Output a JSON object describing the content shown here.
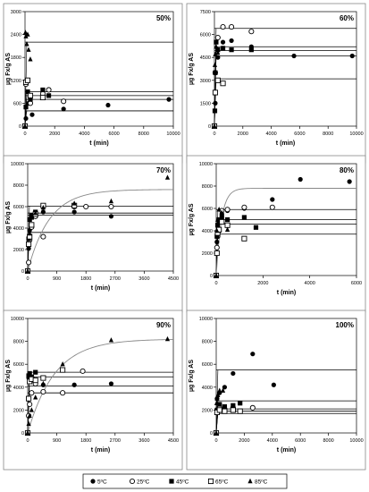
{
  "legend": {
    "entries": [
      {
        "label": "5ºC",
        "marker": "filled-circle"
      },
      {
        "label": "25ºC",
        "marker": "open-circle"
      },
      {
        "label": "45ºC",
        "marker": "filled-square"
      },
      {
        "label": "65ºC",
        "marker": "open-square"
      },
      {
        "label": "85ºC",
        "marker": "filled-triangle"
      }
    ]
  },
  "colors": {
    "marker": "#000000",
    "fit_line": "#000000",
    "asymptote_line": "#000000",
    "exponential_line": "#888888",
    "frame": "#888888"
  },
  "chart_data": [
    {
      "type": "scatter",
      "title": "50%",
      "xlabel": "t (min)",
      "ylabel": "µg Fx/g AS",
      "xlim": [
        0,
        10000
      ],
      "ylim": [
        0,
        3000
      ],
      "xticks": [
        "0",
        "2000",
        "4000",
        "6000",
        "8000",
        "10000"
      ],
      "yticks": [
        "0",
        "600",
        "1200",
        "1800",
        "2400",
        "3000"
      ],
      "hlines": [
        2200,
        900,
        800,
        700,
        400
      ],
      "series": [
        {
          "name": "5ºC",
          "marker": "filled-circle",
          "x": [
            0,
            60,
            240,
            480,
            1200,
            2600,
            5600,
            9700
          ],
          "y": [
            0,
            200,
            600,
            300,
            800,
            450,
            550,
            700
          ]
        },
        {
          "name": "25ºC",
          "marker": "open-circle",
          "x": [
            0,
            60,
            180,
            360,
            1200,
            1600,
            2600
          ],
          "y": [
            0,
            1100,
            1200,
            600,
            850,
            950,
            650
          ]
        },
        {
          "name": "45ºC",
          "marker": "filled-square",
          "x": [
            0,
            60,
            180,
            360,
            1200,
            1600
          ],
          "y": [
            0,
            500,
            900,
            700,
            950,
            800
          ]
        },
        {
          "name": "65ºC",
          "marker": "open-square",
          "x": [
            0,
            60,
            180,
            360,
            1200
          ],
          "y": [
            0,
            1150,
            1200,
            800,
            750
          ]
        },
        {
          "name": "85ºC",
          "marker": "filled-triangle",
          "x": [
            0,
            30,
            60,
            120,
            180,
            240,
            360
          ],
          "y": [
            0,
            2450,
            2350,
            2150,
            2400,
            2000,
            1750
          ]
        }
      ]
    },
    {
      "type": "scatter",
      "title": "60%",
      "xlabel": "t (min)",
      "ylabel": "µg Fx/g AS",
      "xlim": [
        0,
        10000
      ],
      "ylim": [
        0,
        7500
      ],
      "xticks": [
        "0",
        "2000",
        "4000",
        "6000",
        "8000",
        "10000"
      ],
      "yticks": [
        "0",
        "1500",
        "3000",
        "4500",
        "6000",
        "7500"
      ],
      "hlines": [
        6400,
        5200,
        4950,
        4600,
        3100
      ],
      "series": [
        {
          "name": "5ºC",
          "marker": "filled-circle",
          "x": [
            0,
            60,
            240,
            600,
            1200,
            2600,
            5600,
            9700
          ],
          "y": [
            0,
            1500,
            4500,
            5500,
            5600,
            5200,
            4600,
            4600
          ]
        },
        {
          "name": "25ºC",
          "marker": "open-circle",
          "x": [
            0,
            60,
            240,
            600,
            1200,
            2600
          ],
          "y": [
            0,
            3500,
            5800,
            6500,
            6500,
            6200
          ]
        },
        {
          "name": "45ºC",
          "marker": "filled-square",
          "x": [
            0,
            30,
            60,
            120,
            240,
            600,
            1200,
            2600
          ],
          "y": [
            0,
            1000,
            3500,
            5500,
            5000,
            5100,
            5000,
            5000
          ]
        },
        {
          "name": "65ºC",
          "marker": "open-square",
          "x": [
            0,
            60,
            240,
            600
          ],
          "y": [
            0,
            2200,
            3000,
            2800
          ]
        },
        {
          "name": "85ºC",
          "marker": "filled-triangle",
          "x": [
            0,
            30,
            60,
            120,
            240,
            600
          ],
          "y": [
            0,
            4000,
            4700,
            5200,
            4800,
            5100
          ]
        }
      ]
    },
    {
      "type": "scatter",
      "title": "70%",
      "xlabel": "t (min)",
      "ylabel": "µg Fx/g AS",
      "xlim": [
        0,
        4500
      ],
      "ylim": [
        0,
        10000
      ],
      "xticks": [
        "0",
        "900",
        "1800",
        "2700",
        "3600",
        "4500"
      ],
      "yticks": [
        "0",
        "2000",
        "4000",
        "6000",
        "8000",
        "10000"
      ],
      "hlines": [
        6050,
        5400,
        5200,
        3600
      ],
      "exp_curve": {
        "a": 7600,
        "k": 0.0015
      },
      "series": [
        {
          "name": "5ºC",
          "marker": "filled-circle",
          "x": [
            0,
            30,
            60,
            120,
            240,
            480,
            1440,
            2580
          ],
          "y": [
            0,
            2100,
            3800,
            5200,
            5400,
            5500,
            5500,
            5100
          ]
        },
        {
          "name": "25ºC",
          "marker": "open-circle",
          "x": [
            0,
            30,
            60,
            120,
            240,
            480,
            1440,
            1800,
            2580
          ],
          "y": [
            0,
            800,
            2900,
            4100,
            5100,
            3200,
            6000,
            6000,
            6000
          ]
        },
        {
          "name": "45ºC",
          "marker": "filled-square",
          "x": [
            0,
            30,
            60,
            120,
            240
          ],
          "y": [
            0,
            3000,
            4800,
            5000,
            5500
          ]
        },
        {
          "name": "65ºC",
          "marker": "open-square",
          "x": [
            0,
            30,
            60,
            120,
            240,
            480,
            1440
          ],
          "y": [
            0,
            2500,
            3200,
            4300,
            5300,
            6100,
            6100
          ]
        },
        {
          "name": "85ºC",
          "marker": "filled-triangle",
          "x": [
            0,
            60,
            240,
            480,
            1440,
            2580,
            4320
          ],
          "y": [
            0,
            3500,
            5400,
            5900,
            6300,
            6500,
            8700
          ]
        }
      ]
    },
    {
      "type": "scatter",
      "title": "80%",
      "xlabel": "t (min)",
      "ylabel": "µg Fx/g AS",
      "xlim": [
        0,
        6000
      ],
      "ylim": [
        0,
        10000
      ],
      "xticks": [
        "0",
        "2000",
        "4000",
        "6000"
      ],
      "yticks": [
        "0",
        "2000",
        "4000",
        "6000",
        "8000",
        "10000"
      ],
      "hlines": [
        5900,
        5000,
        4600,
        3700
      ],
      "exp_curve": {
        "a": 7800,
        "k": 0.0045
      },
      "series": [
        {
          "name": "5ºC",
          "marker": "filled-circle",
          "x": [
            0,
            30,
            60,
            120,
            240,
            480,
            1200,
            2400,
            3600,
            5700
          ],
          "y": [
            0,
            3000,
            4000,
            4800,
            5500,
            5800,
            6000,
            6800,
            8600,
            8400
          ]
        },
        {
          "name": "25ºC",
          "marker": "open-circle",
          "x": [
            0,
            30,
            60,
            120,
            240,
            480,
            1200,
            2400
          ],
          "y": [
            0,
            2500,
            3500,
            4000,
            5800,
            5900,
            6100,
            6100
          ]
        },
        {
          "name": "45ºC",
          "marker": "filled-square",
          "x": [
            0,
            30,
            60,
            120,
            240,
            480,
            1200,
            1700
          ],
          "y": [
            0,
            3500,
            4500,
            5000,
            5200,
            5000,
            5200,
            4300
          ]
        },
        {
          "name": "65ºC",
          "marker": "open-square",
          "x": [
            0,
            30,
            60,
            120,
            240,
            480,
            1200
          ],
          "y": [
            0,
            2000,
            3800,
            4100,
            4800,
            4500,
            3300
          ]
        },
        {
          "name": "85ºC",
          "marker": "filled-triangle",
          "x": [
            0,
            30,
            60,
            120,
            240,
            480
          ],
          "y": [
            0,
            4000,
            5000,
            5900,
            5600,
            4100
          ]
        }
      ]
    },
    {
      "type": "scatter",
      "title": "90%",
      "xlabel": "t (min)",
      "ylabel": "µg Fx/g AS",
      "xlim": [
        0,
        4500
      ],
      "ylim": [
        0,
        10000
      ],
      "xticks": [
        "0",
        "900",
        "1800",
        "2700",
        "3600",
        "4500"
      ],
      "yticks": [
        "0",
        "2000",
        "4000",
        "6000",
        "8000",
        "10000"
      ],
      "hlines": [
        5300,
        4900,
        4100,
        3500
      ],
      "exp_curve": {
        "a": 8200,
        "k": 0.0012
      },
      "series": [
        {
          "name": "5ºC",
          "marker": "filled-circle",
          "x": [
            0,
            30,
            60,
            120,
            240,
            480,
            1440,
            2580
          ],
          "y": [
            0,
            4800,
            4900,
            4600,
            4300,
            4200,
            4200,
            4300
          ]
        },
        {
          "name": "25ºC",
          "marker": "open-circle",
          "x": [
            0,
            30,
            60,
            120,
            240,
            480,
            1080,
            1700
          ],
          "y": [
            0,
            1500,
            2500,
            3500,
            4300,
            3600,
            3500,
            5400
          ]
        },
        {
          "name": "45ºC",
          "marker": "filled-square",
          "x": [
            0,
            30,
            60,
            120,
            240
          ],
          "y": [
            0,
            5000,
            5200,
            4900,
            5300
          ]
        },
        {
          "name": "65ºC",
          "marker": "open-square",
          "x": [
            0,
            30,
            60,
            120,
            240,
            480,
            1080
          ],
          "y": [
            0,
            3000,
            4500,
            4700,
            4600,
            4800,
            5500
          ]
        },
        {
          "name": "85ºC",
          "marker": "filled-triangle",
          "x": [
            0,
            30,
            60,
            120,
            240,
            480,
            1080,
            2580,
            4320
          ],
          "y": [
            0,
            800,
            1500,
            2000,
            3100,
            4300,
            6000,
            8100,
            8200
          ]
        }
      ]
    },
    {
      "type": "scatter",
      "title": "100%",
      "xlabel": "t (min)",
      "ylabel": "µg Fx/g AS",
      "xlim": [
        0,
        10000
      ],
      "ylim": [
        0,
        10000
      ],
      "xticks": [
        "0",
        "2000",
        "4000",
        "6000",
        "8000",
        "10000"
      ],
      "yticks": [
        "0",
        "2000",
        "4000",
        "6000",
        "8000",
        "10000"
      ],
      "hlines": [
        5500,
        2800,
        2100,
        1900,
        1700
      ],
      "series": [
        {
          "name": "5ºC",
          "marker": "filled-circle",
          "x": [
            0,
            60,
            240,
            600,
            1200,
            2600,
            4100
          ],
          "y": [
            0,
            3000,
            3500,
            4000,
            5200,
            6900,
            4200
          ]
        },
        {
          "name": "25ºC",
          "marker": "open-circle",
          "x": [
            0,
            60,
            240,
            600,
            1200,
            2600
          ],
          "y": [
            0,
            2000,
            2200,
            2100,
            2200,
            2200
          ]
        },
        {
          "name": "45ºC",
          "marker": "filled-square",
          "x": [
            0,
            60,
            240,
            600,
            1200,
            1700
          ],
          "y": [
            0,
            2000,
            2500,
            2300,
            2400,
            2600
          ]
        },
        {
          "name": "65ºC",
          "marker": "open-square",
          "x": [
            0,
            60,
            240,
            600,
            1200,
            1700
          ],
          "y": [
            0,
            1800,
            2000,
            1900,
            2000,
            1900
          ]
        },
        {
          "name": "85ºC",
          "marker": "filled-triangle",
          "x": [
            0,
            30,
            60,
            120,
            240,
            480
          ],
          "y": [
            0,
            2600,
            3000,
            3300,
            3700,
            3700
          ]
        }
      ]
    }
  ]
}
